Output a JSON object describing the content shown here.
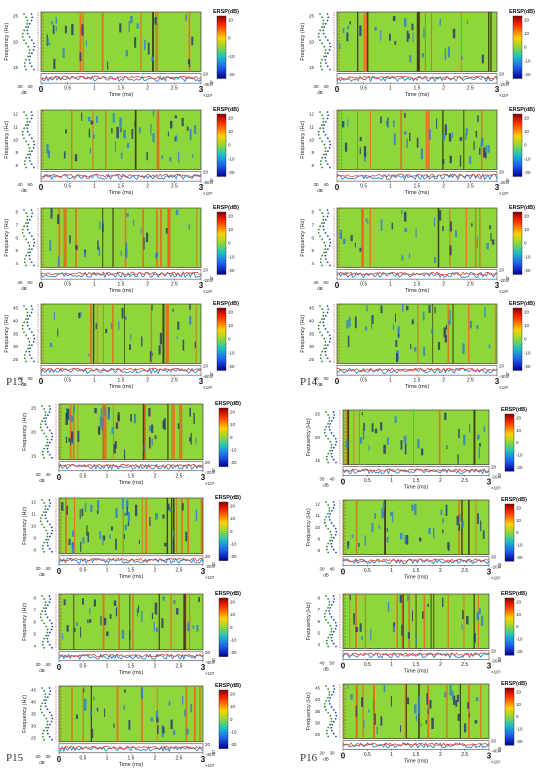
{
  "participants": [
    {
      "id": "P13",
      "label": "P13"
    },
    {
      "id": "P14",
      "label": "P14"
    },
    {
      "id": "P15",
      "label": "P15"
    },
    {
      "id": "P16",
      "label": "P16"
    }
  ],
  "colors": {
    "background": "#8fd63b",
    "vertical_band_orange": "#e8641e",
    "vertical_band_dark": "#3a2a10",
    "power_blue": "#1a7ad4",
    "power_red": "#e8421e",
    "spectrum_green": "#2a8a2a",
    "spectrum_blue": "#1f4fb5"
  },
  "chart_data": [
    {
      "type": "heatmap",
      "participant": "P13",
      "band": "beta",
      "colorbar_label": "ERSP(dB)",
      "ylabel": "Frequency (Hz)",
      "xlabel": "Time (ms)",
      "x_exponent": "×10⁵",
      "xlim": [
        0,
        3
      ],
      "xticks": [
        "0",
        "0.5",
        "1",
        "1.5",
        "2",
        "2.5",
        "3"
      ],
      "yticks": [
        "25",
        "20",
        "15"
      ],
      "ylim": [
        13,
        25
      ],
      "spectrum_ticks": [
        "30",
        "40"
      ],
      "spectrum_unit": "dB",
      "power_ticks": [
        "20",
        "-40"
      ],
      "colorbar_ticks": [
        "10",
        "0",
        "-10",
        "-20"
      ]
    },
    {
      "type": "heatmap",
      "participant": "P13",
      "band": "alpha",
      "colorbar_label": "ERSP(dB)",
      "ylabel": "Frequency (Hz)",
      "xlabel": "Time (ms)",
      "x_exponent": "×10⁵",
      "xlim": [
        0,
        3
      ],
      "xticks": [
        "0",
        "0.5",
        "1",
        "1.5",
        "2",
        "2.5",
        "3"
      ],
      "yticks": [
        "12",
        "11",
        "10",
        "9",
        "8"
      ],
      "ylim": [
        8,
        12
      ],
      "spectrum_ticks": [
        "40",
        "60"
      ],
      "spectrum_unit": "dB",
      "power_ticks": [
        "20",
        "-60"
      ],
      "colorbar_ticks": [
        "20",
        "10",
        "0",
        "-10",
        "-20"
      ]
    },
    {
      "type": "heatmap",
      "participant": "P13",
      "band": "theta",
      "colorbar_label": "ERSP(dB)",
      "ylabel": "Frequency (Hz)",
      "xlabel": "Time (ms)",
      "x_exponent": "×10⁵",
      "xlim": [
        0,
        3
      ],
      "xticks": [
        "0",
        "0.5",
        "1",
        "1.5",
        "2",
        "2.5",
        "3"
      ],
      "yticks": [
        "8",
        "7",
        "6",
        "5",
        "4"
      ],
      "ylim": [
        4,
        8
      ],
      "spectrum_ticks": [
        "40",
        "60"
      ],
      "spectrum_unit": "dB",
      "power_ticks": [
        "20",
        "-20"
      ],
      "colorbar_ticks": [
        "20",
        "10",
        "0",
        "-10",
        "-20"
      ]
    },
    {
      "type": "heatmap",
      "participant": "P13",
      "band": "gamma",
      "colorbar_label": "ERSP(dB)",
      "ylabel": "Frequency (Hz)",
      "xlabel": "Time (ms)",
      "x_exponent": "×10⁵",
      "xlim": [
        0,
        3
      ],
      "xticks": [
        "0",
        "0.5",
        "1",
        "1.5",
        "2",
        "2.5",
        "3"
      ],
      "yticks": [
        "45",
        "40",
        "35",
        "30",
        "25"
      ],
      "ylim": [
        25,
        45
      ],
      "spectrum_ticks": [
        "20",
        "30"
      ],
      "spectrum_unit": "dB",
      "power_ticks": [
        "20",
        "-60"
      ],
      "colorbar_ticks": [
        "20",
        "10",
        "0",
        "-10",
        "-20"
      ]
    },
    {
      "type": "heatmap",
      "participant": "P14",
      "band": "beta",
      "colorbar_label": "ERSP(dB)",
      "ylabel": "Frequency (Hz)",
      "xlabel": "Time (ms)",
      "x_exponent": "×10⁵",
      "xlim": [
        0,
        3
      ],
      "xticks": [
        "0",
        "0.5",
        "1",
        "1.5",
        "2",
        "2.5",
        "3"
      ],
      "yticks": [
        "25",
        "20",
        "15"
      ],
      "ylim": [
        13,
        25
      ],
      "spectrum_ticks": [
        "30",
        "40"
      ],
      "spectrum_unit": "dB",
      "power_ticks": [
        "20",
        "-20"
      ],
      "colorbar_ticks": [
        "20",
        "10",
        "0",
        "-10",
        "-20"
      ]
    },
    {
      "type": "heatmap",
      "participant": "P14",
      "band": "alpha",
      "colorbar_label": "ERSP(dB)",
      "ylabel": "Frequency (Hz)",
      "xlabel": "Time (ms)",
      "x_exponent": "×10⁵",
      "xlim": [
        0,
        3
      ],
      "xticks": [
        "0",
        "0.5",
        "1",
        "1.5",
        "2",
        "2.5",
        "3"
      ],
      "yticks": [
        "12",
        "11",
        "10",
        "9",
        "8"
      ],
      "ylim": [
        8,
        12
      ],
      "spectrum_ticks": [
        "30",
        "40"
      ],
      "spectrum_unit": "dB",
      "power_ticks": [
        "20",
        "-20"
      ],
      "colorbar_ticks": [
        "20",
        "10",
        "0",
        "-10",
        "-20"
      ]
    },
    {
      "type": "heatmap",
      "participant": "P14",
      "band": "theta",
      "colorbar_label": "ERSP(dB)",
      "ylabel": "Frequency (Hz)",
      "xlabel": "Time (ms)",
      "x_exponent": "×10⁵",
      "xlim": [
        0,
        3
      ],
      "xticks": [
        "0",
        "0.5",
        "1",
        "1.5",
        "2",
        "2.5",
        "3"
      ],
      "yticks": [
        "8",
        "7",
        "6",
        "5",
        "4"
      ],
      "ylim": [
        4,
        8
      ],
      "spectrum_ticks": [
        "40",
        "60"
      ],
      "spectrum_unit": "dB",
      "power_ticks": [
        "20",
        "-20"
      ],
      "colorbar_ticks": [
        "20",
        "10",
        "0",
        "-10",
        "-20"
      ]
    },
    {
      "type": "heatmap",
      "participant": "P14",
      "band": "gamma",
      "colorbar_label": "ERSP(dB)",
      "ylabel": "Frequency (Hz)",
      "xlabel": "Time (ms)",
      "x_exponent": "×10⁵",
      "xlim": [
        0,
        3
      ],
      "xticks": [
        "0",
        "0.5",
        "1",
        "1.5",
        "2",
        "2.5",
        "3"
      ],
      "yticks": [
        "45",
        "40",
        "35",
        "30",
        "25"
      ],
      "ylim": [
        25,
        45
      ],
      "spectrum_ticks": [
        "20",
        "30"
      ],
      "spectrum_unit": "dB",
      "power_ticks": [
        "20",
        "-40"
      ],
      "colorbar_ticks": [
        "20",
        "10",
        "0",
        "-10",
        "-20"
      ]
    },
    {
      "type": "heatmap",
      "participant": "P15",
      "band": "beta",
      "colorbar_label": "ERSP(dB)",
      "ylabel": "Frequency (Hz)",
      "xlabel": "Time (ms)",
      "x_exponent": "×10⁵",
      "xlim": [
        0,
        3
      ],
      "xticks": [
        "0",
        "0.5",
        "1",
        "1.5",
        "2",
        "2.5",
        "3"
      ],
      "yticks": [
        "25",
        "20",
        "15"
      ],
      "ylim": [
        13,
        25
      ],
      "spectrum_ticks": [
        "30",
        "40"
      ],
      "spectrum_unit": "dB",
      "power_ticks": [
        "20",
        "-20"
      ],
      "colorbar_ticks": [
        "20",
        "10",
        "0",
        "-10",
        "-20"
      ]
    },
    {
      "type": "heatmap",
      "participant": "P15",
      "band": "alpha",
      "colorbar_label": "ERSP(dB)",
      "ylabel": "Frequency (Hz)",
      "xlabel": "Time (ms)",
      "x_exponent": "×10⁵",
      "xlim": [
        0,
        3
      ],
      "xticks": [
        "0",
        "0.5",
        "1",
        "1.5",
        "2",
        "2.5",
        "3"
      ],
      "yticks": [
        "12",
        "11",
        "10",
        "9",
        "8"
      ],
      "ylim": [
        8,
        12
      ],
      "spectrum_ticks": [
        "30",
        "40"
      ],
      "spectrum_unit": "dB",
      "power_ticks": [
        "20",
        "-20"
      ],
      "colorbar_ticks": [
        "20",
        "10",
        "0",
        "-10",
        "-20"
      ]
    },
    {
      "type": "heatmap",
      "participant": "P15",
      "band": "theta",
      "colorbar_label": "ERSP(dB)",
      "ylabel": "Frequency (Hz)",
      "xlabel": "Time (ms)",
      "x_exponent": "×10⁵",
      "xlim": [
        0,
        3
      ],
      "xticks": [
        "0",
        "0.5",
        "1",
        "1.5",
        "2",
        "2.5",
        "3"
      ],
      "yticks": [
        "8",
        "7",
        "6",
        "5",
        "4"
      ],
      "ylim": [
        4,
        8
      ],
      "spectrum_ticks": [
        "30",
        "40"
      ],
      "spectrum_unit": "dB",
      "power_ticks": [
        "20",
        "-40"
      ],
      "colorbar_ticks": [
        "20",
        "10",
        "0",
        "-10",
        "-20"
      ]
    },
    {
      "type": "heatmap",
      "participant": "P15",
      "band": "gamma",
      "colorbar_label": "ERSP(dB)",
      "ylabel": "Frequency (Hz)",
      "xlabel": "Time (ms)",
      "x_exponent": "×10⁵",
      "xlim": [
        0,
        3
      ],
      "xticks": [
        "0",
        "0.5",
        "1",
        "1.5",
        "2",
        "2.5",
        "3"
      ],
      "yticks": [
        "45",
        "40",
        "35",
        "30",
        "25"
      ],
      "ylim": [
        25,
        45
      ],
      "spectrum_ticks": [
        "20",
        "30"
      ],
      "spectrum_unit": "dB",
      "power_ticks": [
        "20",
        "-40"
      ],
      "colorbar_ticks": [
        "20",
        "10",
        "0",
        "-10",
        "-20"
      ]
    },
    {
      "type": "heatmap",
      "participant": "P16",
      "band": "beta",
      "colorbar_label": "ERSP(dB)",
      "ylabel": "Frequency (Hz)",
      "xlabel": "Time (ms)",
      "x_exponent": "×10⁵",
      "xlim": [
        0,
        3
      ],
      "xticks": [
        "0",
        "0.5",
        "1",
        "1.5",
        "2",
        "2.5",
        "3"
      ],
      "yticks": [
        "25",
        "20",
        "15"
      ],
      "ylim": [
        13,
        25
      ],
      "spectrum_ticks": [
        "30",
        "40"
      ],
      "spectrum_unit": "dB",
      "power_ticks": [
        "20",
        "-20"
      ],
      "colorbar_ticks": [
        "20",
        "10",
        "0",
        "-10",
        "-20"
      ]
    },
    {
      "type": "heatmap",
      "participant": "P16",
      "band": "alpha",
      "colorbar_label": "ERSP(dB)",
      "ylabel": "Frequency (Hz)",
      "xlabel": "Time (ms)",
      "x_exponent": "×10⁵",
      "xlim": [
        0,
        3
      ],
      "xticks": [
        "0",
        "0.5",
        "1",
        "1.5",
        "2",
        "2.5",
        "3"
      ],
      "yticks": [
        "12",
        "11",
        "10",
        "9",
        "8"
      ],
      "ylim": [
        8,
        12
      ],
      "spectrum_ticks": [
        "30",
        "40"
      ],
      "spectrum_unit": "dB",
      "power_ticks": [
        "20",
        "-20"
      ],
      "colorbar_ticks": [
        "20",
        "10",
        "0",
        "-10",
        "-20"
      ]
    },
    {
      "type": "heatmap",
      "participant": "P16",
      "band": "theta",
      "colorbar_label": "ERSP(dB)",
      "ylabel": "Frequency (Hz)",
      "xlabel": "Time (ms)",
      "x_exponent": "×10⁵",
      "xlim": [
        0,
        3
      ],
      "xticks": [
        "0",
        "0.5",
        "1",
        "1.5",
        "2",
        "2.5",
        "3"
      ],
      "yticks": [
        "8",
        "7",
        "6",
        "5",
        "4"
      ],
      "ylim": [
        4,
        8
      ],
      "spectrum_ticks": [
        "40",
        "50"
      ],
      "spectrum_unit": "dB",
      "power_ticks": [
        "20",
        "-20"
      ],
      "colorbar_ticks": [
        "20",
        "10",
        "0",
        "-10",
        "-20"
      ]
    },
    {
      "type": "heatmap",
      "participant": "P16",
      "band": "gamma",
      "colorbar_label": "ERSP(dB)",
      "ylabel": "Frequency (Hz)",
      "xlabel": "Time (ms)",
      "x_exponent": "×10⁵",
      "xlim": [
        0,
        3
      ],
      "xticks": [
        "0",
        "0.5",
        "1",
        "1.5",
        "2",
        "2.5",
        "3"
      ],
      "yticks": [
        "45",
        "40",
        "35",
        "30",
        "25"
      ],
      "ylim": [
        25,
        45
      ],
      "spectrum_ticks": [
        "20",
        "30"
      ],
      "spectrum_unit": "dB",
      "power_ticks": [
        "20",
        "-40"
      ],
      "colorbar_ticks": [
        "20",
        "10",
        "0",
        "-10",
        "-20"
      ]
    }
  ]
}
